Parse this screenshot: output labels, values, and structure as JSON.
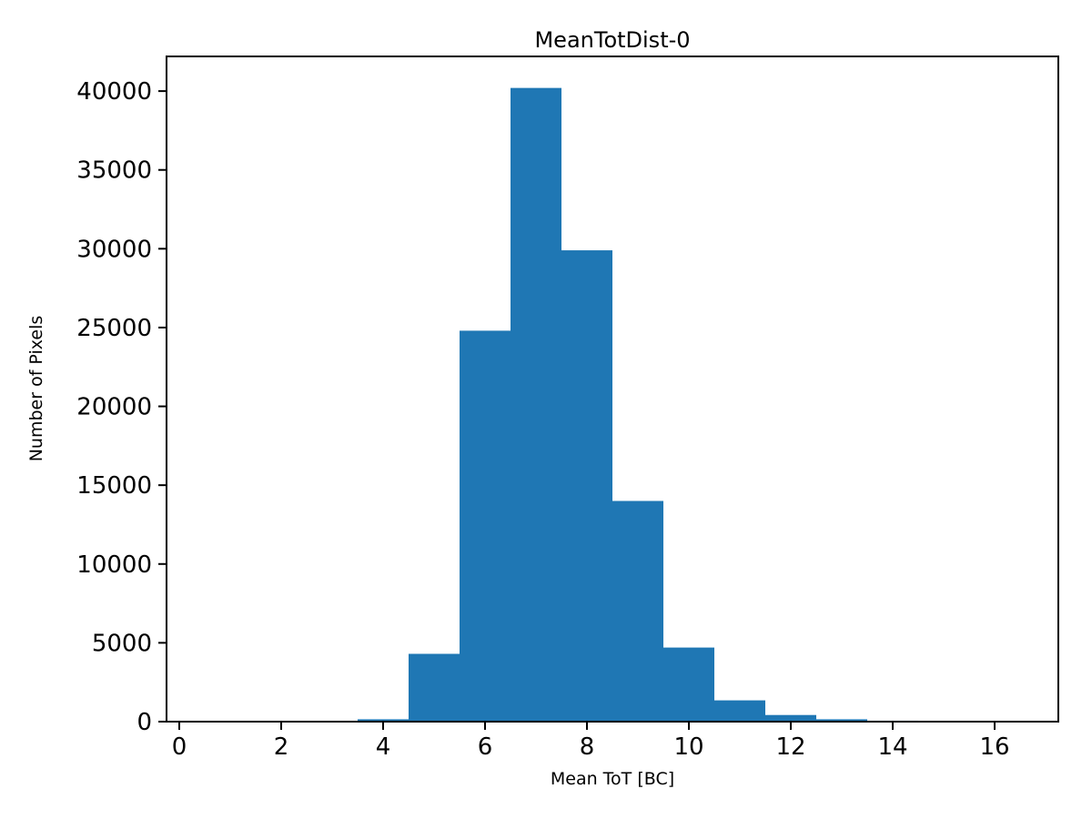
{
  "chart_data": {
    "type": "bar",
    "subtype": "histogram",
    "title": "MeanTotDist-0",
    "xlabel": "Mean ToT [BC]",
    "ylabel": "Number of Pixels",
    "bar_color": "#1f77b4",
    "bin_edges": [
      0.5,
      1.5,
      2.5,
      3.5,
      4.5,
      5.5,
      6.5,
      7.5,
      8.5,
      9.5,
      10.5,
      11.5,
      12.5,
      13.5,
      14.5,
      15.5,
      16.5
    ],
    "counts": [
      0,
      0,
      0,
      150,
      4300,
      24800,
      40200,
      29900,
      14000,
      4700,
      1350,
      420,
      150,
      60,
      0,
      0
    ],
    "xlim": [
      -0.25,
      17.25
    ],
    "ylim": [
      0,
      42200
    ],
    "xticks": [
      0,
      2,
      4,
      6,
      8,
      10,
      12,
      14,
      16
    ],
    "yticks": [
      0,
      5000,
      10000,
      15000,
      20000,
      25000,
      30000,
      35000,
      40000
    ],
    "grid": false,
    "legend": null
  }
}
